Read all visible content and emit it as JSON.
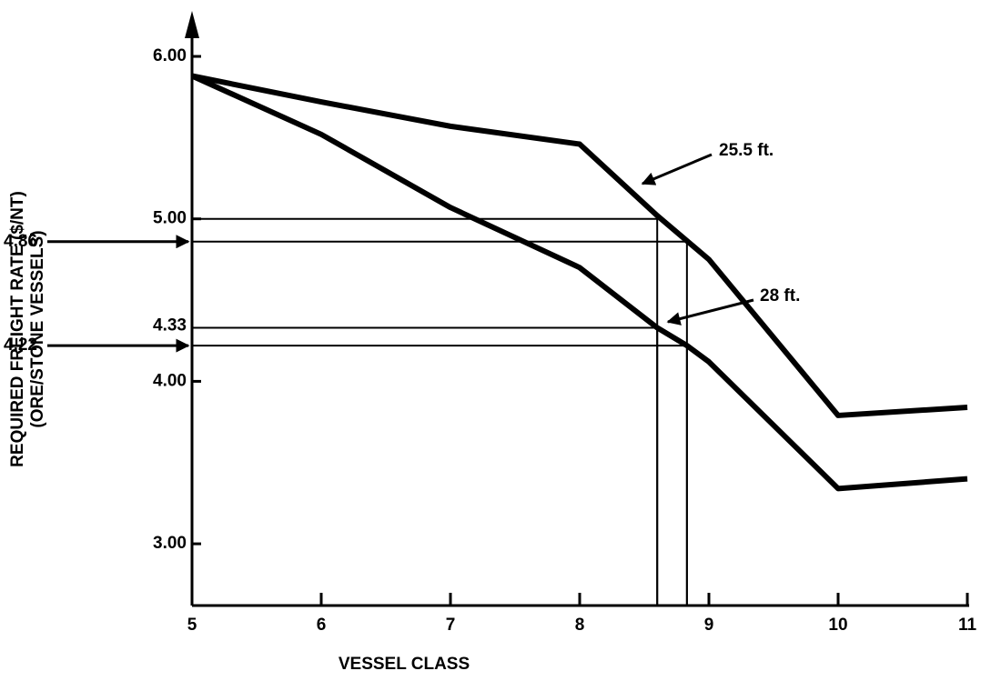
{
  "chart_data": {
    "type": "line",
    "x_label": "VESSEL CLASS",
    "y_label": [
      "REQUIRED FREIGHT RATE ($/NT)",
      "(ORE/STONE VESSELS)"
    ],
    "xlim": [
      5,
      11
    ],
    "ylim": [
      2.62,
      6.28
    ],
    "xticks": [
      5,
      6,
      7,
      8,
      9,
      10,
      11
    ],
    "yticks": [
      {
        "value": 3,
        "label": "3.00"
      },
      {
        "value": 4,
        "label": "4.00"
      },
      {
        "value": 5,
        "label": "5.00"
      },
      {
        "value": 6,
        "label": "6.00"
      }
    ],
    "series": [
      {
        "name": "25.5 ft.",
        "color": "#000000",
        "x": [
          5,
          6,
          7,
          8,
          8.6,
          9,
          10,
          11
        ],
        "values": [
          5.88,
          5.72,
          5.57,
          5.46,
          5.02,
          4.75,
          3.79,
          3.84
        ]
      },
      {
        "name": "28 ft.",
        "color": "#000000",
        "x": [
          5,
          6,
          7,
          8,
          8.6,
          8.83,
          9,
          10,
          11
        ],
        "values": [
          5.88,
          5.52,
          5.07,
          4.7,
          4.33,
          4.22,
          4.12,
          3.34,
          3.4
        ]
      }
    ],
    "guides": [
      {
        "x": 8.6,
        "y": 5
      },
      {
        "x": 8.83,
        "y": 4.86,
        "label": "4.86",
        "pointer": true
      },
      {
        "x": 8.6,
        "y": 4.33,
        "label": "4.33"
      },
      {
        "x": 8.83,
        "y": 4.22,
        "label": "4.22",
        "pointer": true
      }
    ]
  }
}
